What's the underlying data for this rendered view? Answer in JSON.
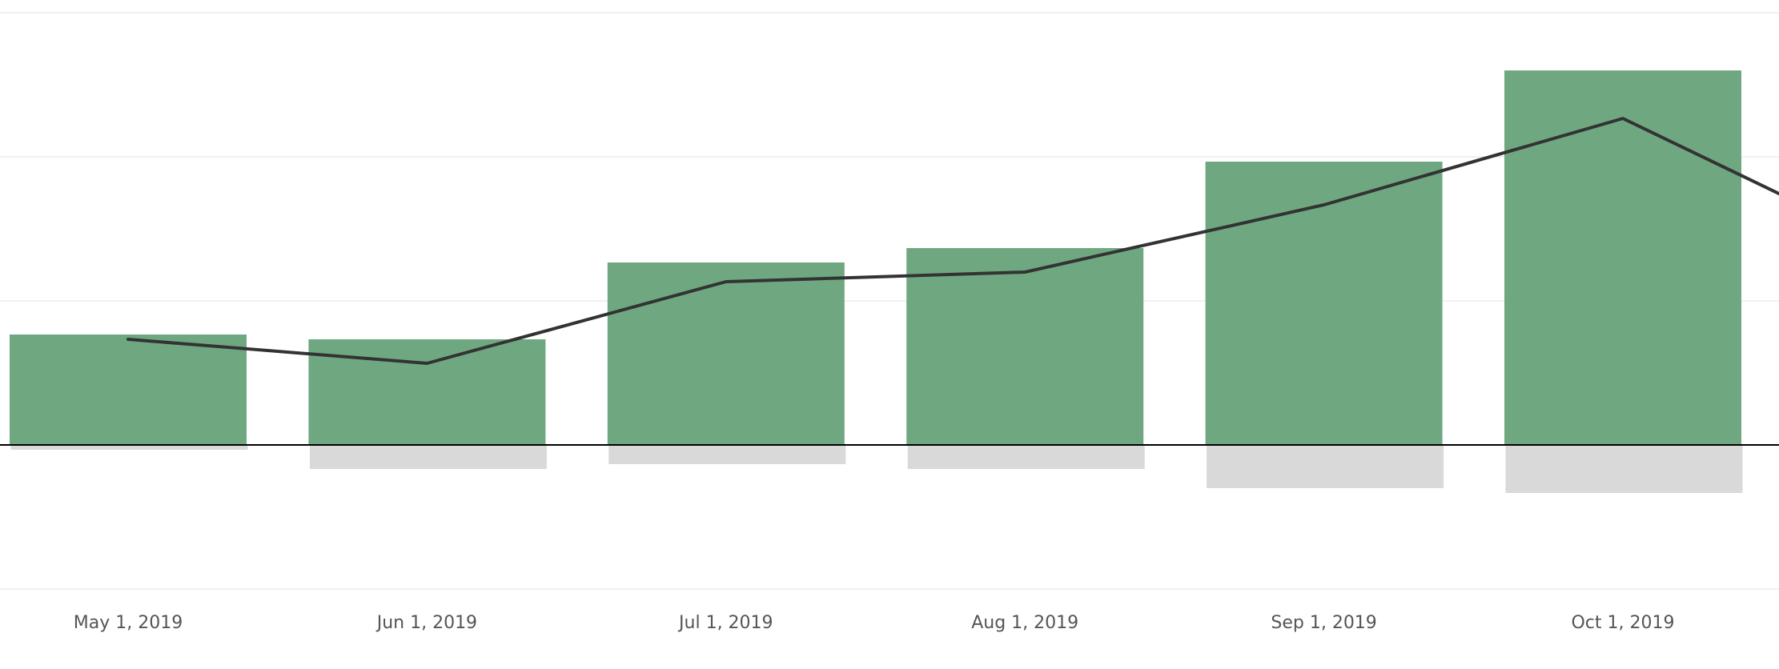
{
  "chart_data": {
    "type": "bar",
    "categories": [
      "May 1, 2019",
      "Jun 1, 2019",
      "Jul 1, 2019",
      "Aug 1, 2019",
      "Sep 1, 2019",
      "Oct 1, 2019"
    ],
    "series": [
      {
        "type": "bar",
        "color": "#6fa880",
        "values": [
          23,
          22,
          38,
          41,
          59,
          78
        ]
      },
      {
        "type": "bar",
        "color": "#d9d9d9",
        "values": [
          -1,
          -5,
          -4,
          -5,
          -9,
          -10
        ]
      },
      {
        "type": "line",
        "color": "#333333",
        "values": [
          22,
          17,
          34,
          36,
          50,
          68
        ],
        "continues_to": 38
      }
    ],
    "ylim": [
      -30,
      90
    ],
    "y_gridlines": [
      -30,
      30,
      60,
      90
    ],
    "grid": true,
    "legend": "none",
    "title": "",
    "xlabel": "",
    "ylabel": ""
  }
}
